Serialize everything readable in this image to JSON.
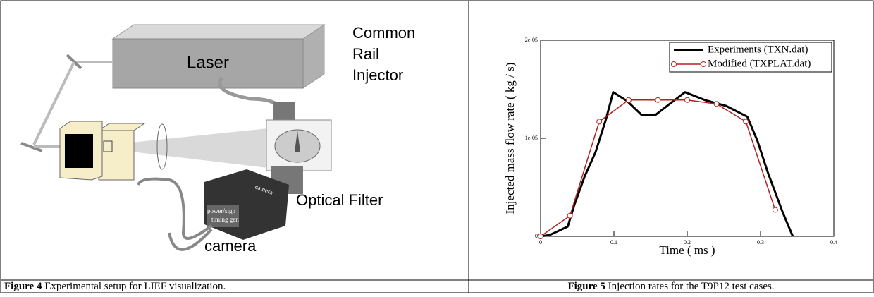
{
  "figure4": {
    "labels": {
      "laser": "Laser",
      "injector": [
        "Common",
        "Rail",
        "Injector"
      ],
      "filter": "Optical Filter",
      "camera": "camera",
      "camera_body": [
        "camera",
        "power/sign",
        "timing gen"
      ]
    },
    "caption": {
      "label": "Figure 4",
      "text": "Experimental setup for LIEF visualization."
    }
  },
  "chart_data": {
    "type": "line",
    "xlabel": "Time ( ms )",
    "ylabel": "Injected mass flow rate ( kg / s)",
    "xlim": [
      0,
      0.4
    ],
    "xticks": [
      0,
      0.1,
      0.2,
      0.3,
      0.4
    ],
    "ylim": [
      0,
      2e-05
    ],
    "yticks": [
      0,
      {
        "value": 1e-05,
        "label": "1e-05"
      },
      {
        "value": 2e-05,
        "label": "2e-05"
      }
    ],
    "legend": "top-right",
    "series": [
      {
        "name": "Experiments (TXN.dat)",
        "color": "#000000",
        "marker": "none",
        "x": [
          0,
          0.0125,
          0.037,
          0.046,
          0.06,
          0.075,
          0.089,
          0.099,
          0.118,
          0.1375,
          0.157,
          0.176,
          0.197,
          0.224,
          0.253,
          0.282,
          0.296,
          0.31,
          0.33,
          0.344
        ],
        "values": [
          0,
          1.4e-07,
          1e-06,
          3.2e-06,
          6.1e-06,
          8.6e-06,
          1.19e-05,
          1.47e-05,
          1.38e-05,
          1.24e-05,
          1.24e-05,
          1.35e-05,
          1.47e-05,
          1.39e-05,
          1.33e-05,
          1.22e-05,
          9.7e-06,
          6.5e-06,
          2.5e-06,
          0
        ]
      },
      {
        "name": "Modified (TXPLAT.dat)",
        "color": "#b22222",
        "marker": "circle",
        "x": [
          0,
          0.04,
          0.08,
          0.12,
          0.16,
          0.2,
          0.24,
          0.28,
          0.32
        ],
        "values": [
          0,
          2.1e-06,
          1.17e-05,
          1.39e-05,
          1.39e-05,
          1.39e-05,
          1.35e-05,
          1.17e-05,
          2.7e-06
        ]
      }
    ]
  },
  "figure5": {
    "caption": {
      "label": "Figure 5",
      "text": "Injection rates for the T9P12 test cases."
    }
  }
}
